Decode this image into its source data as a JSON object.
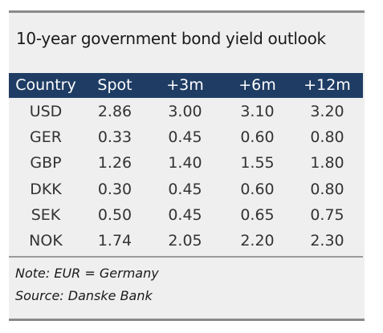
{
  "title": "10-year government bond yield outlook",
  "table": {
    "headers": [
      "Country",
      "Spot",
      "+3m",
      "+6m",
      "+12m"
    ],
    "rows": [
      [
        "USD",
        "2.86",
        "3.00",
        "3.10",
        "3.20"
      ],
      [
        "GER",
        "0.33",
        "0.45",
        "0.60",
        "0.80"
      ],
      [
        "GBP",
        "1.26",
        "1.40",
        "1.55",
        "1.80"
      ],
      [
        "DKK",
        "0.30",
        "0.45",
        "0.60",
        "0.80"
      ],
      [
        "SEK",
        "0.50",
        "0.45",
        "0.65",
        "0.75"
      ],
      [
        "NOK",
        "1.74",
        "2.05",
        "2.20",
        "2.30"
      ]
    ]
  },
  "notes": {
    "note": "Note: EUR = Germany",
    "source": "Source: Danske Bank"
  },
  "colors": {
    "header_bg": "#1f3d64",
    "panel_bg": "#efefef",
    "rule": "#8a8a8a"
  }
}
